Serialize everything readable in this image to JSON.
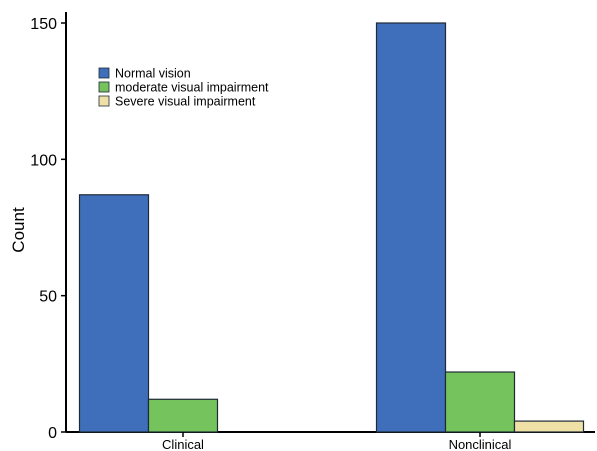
{
  "chart_data": {
    "type": "bar",
    "title": "",
    "xlabel": "",
    "ylabel": "Count",
    "ylim": [
      0,
      150
    ],
    "yticks": [
      0,
      50,
      100,
      150
    ],
    "categories": [
      "Clinical",
      "Nonclinical"
    ],
    "series": [
      {
        "name": "Normal vision",
        "color": "#3f6fba",
        "values": [
          87,
          150
        ]
      },
      {
        "name": "moderate visual impairment",
        "color": "#74c35d",
        "values": [
          12,
          22
        ]
      },
      {
        "name": "Severe visual impairment",
        "color": "#efe1a6",
        "values": [
          0,
          4
        ]
      }
    ],
    "grid": false,
    "legend": "top-left"
  }
}
